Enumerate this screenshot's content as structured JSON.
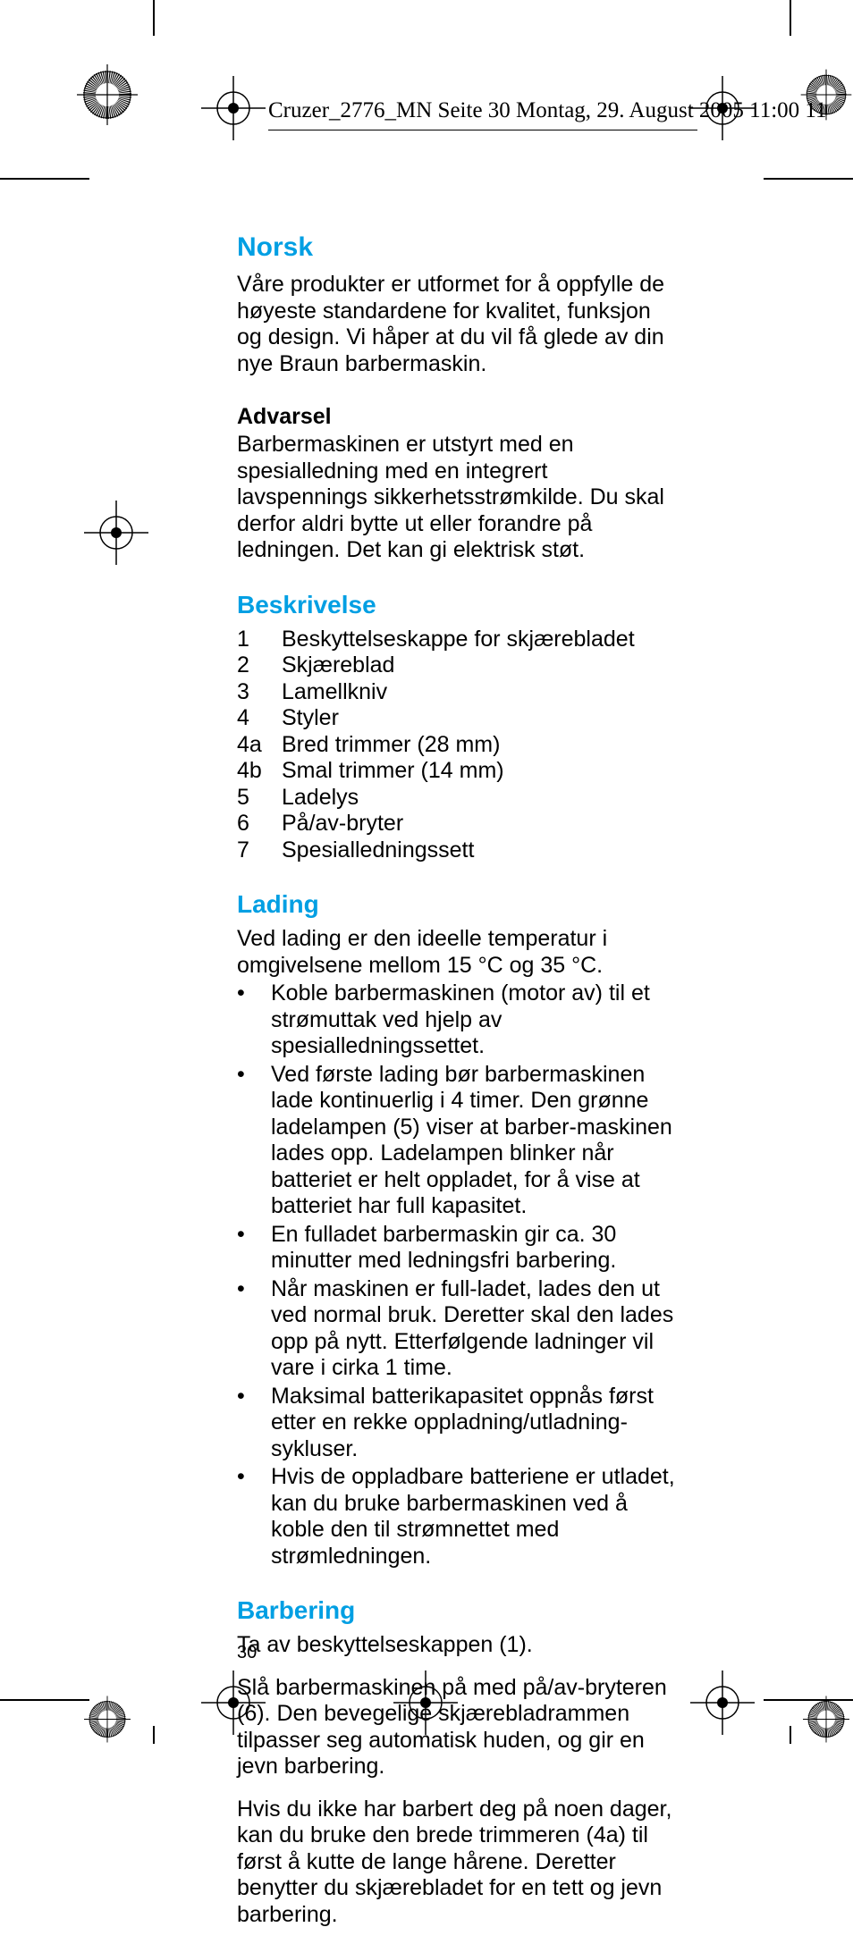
{
  "colors": {
    "heading": "#009fe3",
    "text": "#000000",
    "background": "#ffffff"
  },
  "header": {
    "line": "Cruzer_2776_MN  Seite 30  Montag, 29. August 2005  11:00 11"
  },
  "page_number": "30",
  "sections": {
    "title": "Norsk",
    "intro": "Våre produkter er utformet for å oppfylle de høyeste standardene for kvalitet, funksjon og design. Vi håper at du vil få glede av din nye Braun barbermaskin.",
    "warning_heading": "Advarsel",
    "warning_body": "Barbermaskinen er utstyrt med en spesialledning med en integrert lavspennings sikkerhetsstrømkilde. Du skal derfor aldri bytte ut eller forandre på ledningen. Det kan gi elektrisk støt.",
    "beskrivelse_heading": "Beskrivelse",
    "beskrivelse_items": [
      {
        "n": "1",
        "t": "Beskyttelseskappe for skjærebladet"
      },
      {
        "n": "2",
        "t": "Skjæreblad"
      },
      {
        "n": "3",
        "t": "Lamellkniv"
      },
      {
        "n": "4",
        "t": "Styler"
      },
      {
        "n": "4a",
        "t": "Bred trimmer (28 mm)"
      },
      {
        "n": "4b",
        "t": "Smal trimmer (14 mm)"
      },
      {
        "n": "5",
        "t": "Ladelys"
      },
      {
        "n": "6",
        "t": "På/av-bryter"
      },
      {
        "n": "7",
        "t": "Spesialledningssett"
      }
    ],
    "lading_heading": "Lading",
    "lading_intro": "Ved lading er den ideelle temperatur i omgivelsene mellom 15 °C og 35 °C.",
    "lading_bullets": [
      "Koble barbermaskinen (motor av) til et strømuttak ved hjelp av spesialledningssettet.",
      "Ved første lading bør barbermaskinen lade kontinuerlig i 4 timer. Den grønne ladelampen (5) viser at barber-maskinen lades opp.  Ladelampen blinker når batteriet er helt oppladet, for å vise at batteriet har full kapasitet.",
      "En fulladet barbermaskin gir ca. 30 minutter med ledningsfri barbering.",
      "Når maskinen er full-ladet, lades den ut ved normal bruk. Deretter skal den lades opp på nytt. Etterfølgende ladninger vil vare i cirka 1 time.",
      "Maksimal batterikapasitet oppnås først etter en rekke oppladning/utladning-sykluser.",
      "Hvis de oppladbare batteriene er utladet, kan du bruke barbermaskinen ved å koble den til strømnettet med strømledningen."
    ],
    "barbering_heading": "Barbering",
    "barbering_p1": "Ta av beskyttelseskappen (1).",
    "barbering_p2": "Slå barbermaskinen på med på/av-bryteren (6). Den bevegelige skjærebladrammen tilpasser seg automatisk huden, og gir en jevn barbering.",
    "barbering_p3": "Hvis du ikke har barbert deg på noen dager, kan du bruke den brede trimmeren (4a) til først å kutte de lange hårene. Deretter benytter du skjærebladet for en tett og jevn barbering."
  },
  "typography": {
    "heading_fontsize_pt": 22,
    "body_fontsize_pt": 19,
    "font_family": "Arial"
  }
}
